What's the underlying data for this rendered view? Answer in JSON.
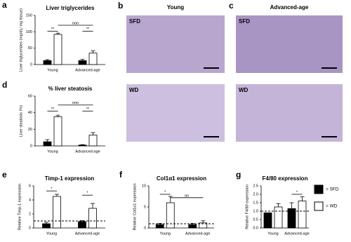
{
  "micrographs": {
    "columns": [
      {
        "letter": "b",
        "title": "Young"
      },
      {
        "letter": "c",
        "title": "Advanced-age"
      }
    ],
    "rows": [
      "SFD",
      "WD"
    ]
  },
  "legend": [
    {
      "label": "= SFD",
      "color": "#000000"
    },
    {
      "label": "= WD",
      "color": "#ffffff"
    }
  ],
  "chart_data": [
    {
      "type": "bar",
      "panel": "a",
      "title": "Liver triglycerides",
      "ylabel": "Liver triglycerides (mg/dL/ mg tissue)",
      "categories": [
        "Young",
        "Advanced-age"
      ],
      "series": [
        {
          "name": "SFD",
          "color": "#000000",
          "values": [
            12,
            12
          ],
          "errors": [
            3,
            4
          ]
        },
        {
          "name": "WD",
          "color": "#ffffff",
          "values": [
            92,
            35
          ],
          "errors": [
            4,
            7
          ]
        }
      ],
      "ylim": [
        0,
        150
      ],
      "yticks": [
        0,
        50,
        100,
        150
      ],
      "annotations": [
        "**",
        "ooo",
        "**"
      ]
    },
    {
      "type": "bar",
      "panel": "d",
      "title": "% liver steatosis",
      "ylabel": "Liver steatosis (%)",
      "categories": [
        "Young",
        "Advanced-age"
      ],
      "series": [
        {
          "name": "SFD",
          "color": "#000000",
          "values": [
            5,
            1
          ],
          "errors": [
            2.5,
            0.5
          ]
        },
        {
          "name": "WD",
          "color": "#ffffff",
          "values": [
            35,
            13
          ],
          "errors": [
            2,
            3
          ]
        }
      ],
      "ylim": [
        0,
        60
      ],
      "yticks": [
        0,
        20,
        40,
        60
      ],
      "annotations": [
        "**",
        "ooo",
        "**"
      ]
    },
    {
      "type": "bar",
      "panel": "e",
      "title": "Timp-1 expression",
      "ylabel": "Relative Timp-1 expression",
      "categories": [
        "Young",
        "Advanced-age"
      ],
      "series": [
        {
          "name": "SFD",
          "color": "#000000",
          "values": [
            0.6,
            0.9
          ],
          "errors": [
            0.2,
            0.15
          ]
        },
        {
          "name": "WD",
          "color": "#ffffff",
          "values": [
            4.5,
            2.8
          ],
          "errors": [
            0.3,
            0.7
          ]
        }
      ],
      "ylim": [
        0,
        6
      ],
      "yticks": [
        0,
        2,
        4,
        6
      ],
      "reference_line": 1,
      "annotations": [
        "*",
        "*"
      ]
    },
    {
      "type": "bar",
      "panel": "f",
      "title": "Col1α1 expression",
      "ylabel": "Relative Col1α1 expression",
      "categories": [
        "Young",
        "Advanced-age"
      ],
      "series": [
        {
          "name": "SFD",
          "color": "#000000",
          "values": [
            0.8,
            0.8
          ],
          "errors": [
            0.3,
            0.3
          ]
        },
        {
          "name": "WD",
          "color": "#ffffff",
          "values": [
            6,
            1.2
          ],
          "errors": [
            1.5,
            0.5
          ]
        }
      ],
      "ylim": [
        0,
        10
      ],
      "yticks": [
        0,
        5,
        10
      ],
      "reference_line": 1,
      "annotations": [
        "*",
        "oo"
      ]
    },
    {
      "type": "bar",
      "panel": "g",
      "title": "F4/80 expression",
      "ylabel": "Relative F4/80 expression",
      "categories": [
        "Young",
        "Advanced-age"
      ],
      "series": [
        {
          "name": "SFD",
          "color": "#000000",
          "values": [
            0.9,
            1.15
          ],
          "errors": [
            0,
            0.35
          ]
        },
        {
          "name": "WD",
          "color": "#ffffff",
          "values": [
            1.25,
            1.6
          ],
          "errors": [
            0.2,
            0.25
          ]
        }
      ],
      "ylim": [
        0,
        2.5
      ],
      "yticks": [
        {
          "value": 0,
          "label": "0.0"
        },
        {
          "value": 0.5,
          "label": "0.5"
        },
        {
          "value": 1,
          "label": "1.0"
        },
        {
          "value": 1.5,
          "label": "1.5"
        },
        {
          "value": 2,
          "label": "2.0"
        },
        {
          "value": 2.5,
          "label": "2.5"
        }
      ],
      "reference_line": 1,
      "annotations": [
        "*"
      ]
    }
  ]
}
